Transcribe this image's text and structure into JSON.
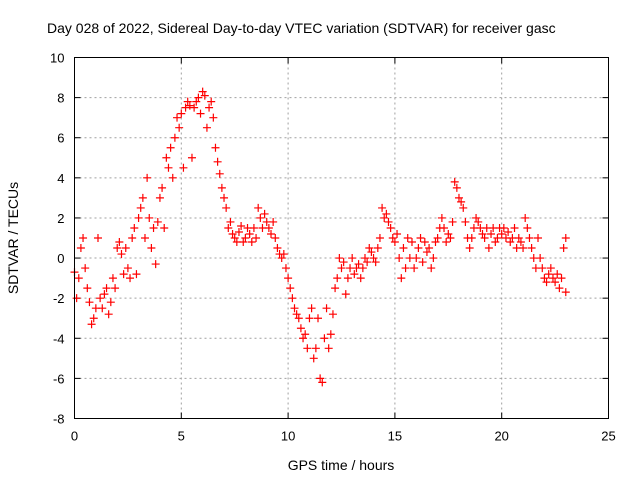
{
  "chart_data": {
    "type": "scatter",
    "title": "Day 028 of 2022, Sidereal Day-to-day VTEC variation (SDTVAR) for receiver gasc",
    "xlabel": "GPS time / hours",
    "ylabel": "SDTVAR / TECUs",
    "xlim": [
      0,
      25
    ],
    "ylim": [
      -8,
      10
    ],
    "xticks": [
      0,
      5,
      10,
      15,
      20,
      25
    ],
    "yticks": [
      -8,
      -6,
      -4,
      -2,
      0,
      2,
      4,
      6,
      8,
      10
    ],
    "grid": true,
    "marker": "+",
    "color": "#ff0000",
    "series": [
      {
        "name": "SDTVAR",
        "points": [
          [
            0.0,
            -0.7
          ],
          [
            0.1,
            -2.0
          ],
          [
            0.2,
            -1.0
          ],
          [
            0.3,
            0.5
          ],
          [
            0.4,
            1.0
          ],
          [
            0.5,
            -0.5
          ],
          [
            0.6,
            -1.5
          ],
          [
            0.7,
            -2.2
          ],
          [
            0.8,
            -3.3
          ],
          [
            0.9,
            -3.0
          ],
          [
            1.0,
            -2.5
          ],
          [
            1.1,
            1.0
          ],
          [
            1.2,
            -2.0
          ],
          [
            1.3,
            -2.5
          ],
          [
            1.4,
            -1.8
          ],
          [
            1.5,
            -1.5
          ],
          [
            1.6,
            -2.8
          ],
          [
            1.7,
            -2.2
          ],
          [
            1.8,
            -1.0
          ],
          [
            1.9,
            -1.5
          ],
          [
            2.0,
            0.5
          ],
          [
            2.1,
            0.8
          ],
          [
            2.2,
            0.2
          ],
          [
            2.3,
            -0.8
          ],
          [
            2.4,
            0.5
          ],
          [
            2.5,
            -0.5
          ],
          [
            2.6,
            -1.0
          ],
          [
            2.7,
            1.0
          ],
          [
            2.8,
            1.5
          ],
          [
            2.9,
            -0.8
          ],
          [
            3.0,
            2.0
          ],
          [
            3.1,
            2.5
          ],
          [
            3.2,
            3.0
          ],
          [
            3.3,
            1.0
          ],
          [
            3.4,
            4.0
          ],
          [
            3.5,
            2.0
          ],
          [
            3.6,
            0.5
          ],
          [
            3.7,
            1.5
          ],
          [
            3.8,
            -0.3
          ],
          [
            3.9,
            1.8
          ],
          [
            4.0,
            3.0
          ],
          [
            4.1,
            3.5
          ],
          [
            4.2,
            1.5
          ],
          [
            4.3,
            5.0
          ],
          [
            4.4,
            4.5
          ],
          [
            4.5,
            5.5
          ],
          [
            4.6,
            4.0
          ],
          [
            4.7,
            6.0
          ],
          [
            4.8,
            7.0
          ],
          [
            4.9,
            6.5
          ],
          [
            5.0,
            7.2
          ],
          [
            5.1,
            4.5
          ],
          [
            5.2,
            7.5
          ],
          [
            5.3,
            7.8
          ],
          [
            5.4,
            7.6
          ],
          [
            5.5,
            5.0
          ],
          [
            5.6,
            7.5
          ],
          [
            5.7,
            7.8
          ],
          [
            5.8,
            8.0
          ],
          [
            5.9,
            7.2
          ],
          [
            6.0,
            8.3
          ],
          [
            6.1,
            8.1
          ],
          [
            6.2,
            6.5
          ],
          [
            6.3,
            7.5
          ],
          [
            6.4,
            7.8
          ],
          [
            6.5,
            7.0
          ],
          [
            6.6,
            5.5
          ],
          [
            6.7,
            4.8
          ],
          [
            6.8,
            4.2
          ],
          [
            6.9,
            3.5
          ],
          [
            7.0,
            3.0
          ],
          [
            7.1,
            2.5
          ],
          [
            7.2,
            1.5
          ],
          [
            7.3,
            1.8
          ],
          [
            7.4,
            1.2
          ],
          [
            7.5,
            1.0
          ],
          [
            7.6,
            0.8
          ],
          [
            7.7,
            1.3
          ],
          [
            7.8,
            1.6
          ],
          [
            7.9,
            0.8
          ],
          [
            8.0,
            1.0
          ],
          [
            8.1,
            1.5
          ],
          [
            8.2,
            1.2
          ],
          [
            8.3,
            0.8
          ],
          [
            8.4,
            1.5
          ],
          [
            8.5,
            1.0
          ],
          [
            8.6,
            2.5
          ],
          [
            8.7,
            2.0
          ],
          [
            8.8,
            1.5
          ],
          [
            8.9,
            2.2
          ],
          [
            9.0,
            1.8
          ],
          [
            9.1,
            1.5
          ],
          [
            9.2,
            1.2
          ],
          [
            9.3,
            1.8
          ],
          [
            9.4,
            1.0
          ],
          [
            9.5,
            0.5
          ],
          [
            9.6,
            0.2
          ],
          [
            9.7,
            0.0
          ],
          [
            9.8,
            0.2
          ],
          [
            9.9,
            -0.5
          ],
          [
            10.0,
            -1.0
          ],
          [
            10.1,
            -1.5
          ],
          [
            10.2,
            -2.0
          ],
          [
            10.3,
            -2.5
          ],
          [
            10.4,
            -2.8
          ],
          [
            10.5,
            -3.0
          ],
          [
            10.6,
            -3.5
          ],
          [
            10.7,
            -4.0
          ],
          [
            10.8,
            -3.8
          ],
          [
            10.9,
            -4.5
          ],
          [
            11.0,
            -3.0
          ],
          [
            11.1,
            -2.5
          ],
          [
            11.2,
            -5.0
          ],
          [
            11.3,
            -4.5
          ],
          [
            11.4,
            -3.0
          ],
          [
            11.5,
            -6.0
          ],
          [
            11.6,
            -6.2
          ],
          [
            11.7,
            -4.0
          ],
          [
            11.8,
            -2.5
          ],
          [
            11.9,
            -4.5
          ],
          [
            12.0,
            -3.8
          ],
          [
            12.1,
            -2.8
          ],
          [
            12.2,
            -1.5
          ],
          [
            12.3,
            -1.0
          ],
          [
            12.4,
            0.0
          ],
          [
            12.5,
            -0.5
          ],
          [
            12.6,
            -0.2
          ],
          [
            12.7,
            -1.8
          ],
          [
            12.8,
            -1.0
          ],
          [
            12.9,
            -0.5
          ],
          [
            13.0,
            0.0
          ],
          [
            13.1,
            -0.8
          ],
          [
            13.2,
            -0.5
          ],
          [
            13.3,
            -0.3
          ],
          [
            13.4,
            -1.0
          ],
          [
            13.5,
            -0.5
          ],
          [
            13.6,
            0.0
          ],
          [
            13.7,
            -0.2
          ],
          [
            13.8,
            0.5
          ],
          [
            13.9,
            0.3
          ],
          [
            14.0,
            0.0
          ],
          [
            14.1,
            -0.2
          ],
          [
            14.2,
            0.5
          ],
          [
            14.3,
            1.0
          ],
          [
            14.4,
            2.5
          ],
          [
            14.5,
            2.0
          ],
          [
            14.6,
            2.2
          ],
          [
            14.7,
            1.8
          ],
          [
            14.8,
            1.5
          ],
          [
            14.9,
            1.0
          ],
          [
            15.0,
            0.8
          ],
          [
            15.1,
            1.2
          ],
          [
            15.2,
            0.0
          ],
          [
            15.3,
            -1.0
          ],
          [
            15.4,
            0.5
          ],
          [
            15.5,
            -0.5
          ],
          [
            15.6,
            1.0
          ],
          [
            15.7,
            0.0
          ],
          [
            15.8,
            0.8
          ],
          [
            15.9,
            -0.5
          ],
          [
            16.0,
            0.0
          ],
          [
            16.1,
            0.5
          ],
          [
            16.2,
            1.0
          ],
          [
            16.3,
            -0.2
          ],
          [
            16.4,
            0.8
          ],
          [
            16.5,
            0.3
          ],
          [
            16.6,
            0.5
          ],
          [
            16.7,
            -0.5
          ],
          [
            16.8,
            0.0
          ],
          [
            16.9,
            0.8
          ],
          [
            17.0,
            1.0
          ],
          [
            17.1,
            1.5
          ],
          [
            17.2,
            2.0
          ],
          [
            17.3,
            1.5
          ],
          [
            17.4,
            0.8
          ],
          [
            17.5,
            1.2
          ],
          [
            17.6,
            1.0
          ],
          [
            17.7,
            1.8
          ],
          [
            17.8,
            3.8
          ],
          [
            17.9,
            3.5
          ],
          [
            18.0,
            3.0
          ],
          [
            18.1,
            2.8
          ],
          [
            18.2,
            2.5
          ],
          [
            18.3,
            1.8
          ],
          [
            18.4,
            1.0
          ],
          [
            18.5,
            0.5
          ],
          [
            18.6,
            1.0
          ],
          [
            18.7,
            1.5
          ],
          [
            18.8,
            2.0
          ],
          [
            18.9,
            1.8
          ],
          [
            19.0,
            1.5
          ],
          [
            19.1,
            1.2
          ],
          [
            19.2,
            1.0
          ],
          [
            19.3,
            1.5
          ],
          [
            19.4,
            0.5
          ],
          [
            19.5,
            1.2
          ],
          [
            19.6,
            1.5
          ],
          [
            19.7,
            0.8
          ],
          [
            19.8,
            1.0
          ],
          [
            19.9,
            1.5
          ],
          [
            20.0,
            1.2
          ],
          [
            20.1,
            1.5
          ],
          [
            20.2,
            1.0
          ],
          [
            20.3,
            1.3
          ],
          [
            20.4,
            0.8
          ],
          [
            20.5,
            1.0
          ],
          [
            20.6,
            1.5
          ],
          [
            20.7,
            0.5
          ],
          [
            20.8,
            1.0
          ],
          [
            20.9,
            0.8
          ],
          [
            21.0,
            0.5
          ],
          [
            21.1,
            2.0
          ],
          [
            21.2,
            1.5
          ],
          [
            21.3,
            1.0
          ],
          [
            21.4,
            0.5
          ],
          [
            21.5,
            0.0
          ],
          [
            21.6,
            -0.5
          ],
          [
            21.7,
            1.0
          ],
          [
            21.8,
            0.0
          ],
          [
            21.9,
            -0.5
          ],
          [
            22.0,
            -1.0
          ],
          [
            22.1,
            -1.2
          ],
          [
            22.2,
            -0.8
          ],
          [
            22.3,
            -0.5
          ],
          [
            22.4,
            -1.0
          ],
          [
            22.5,
            -1.2
          ],
          [
            22.6,
            -0.8
          ],
          [
            22.7,
            -1.5
          ],
          [
            22.8,
            -1.0
          ],
          [
            22.9,
            0.5
          ],
          [
            23.0,
            1.0
          ],
          [
            23.0,
            -1.7
          ]
        ]
      }
    ]
  }
}
